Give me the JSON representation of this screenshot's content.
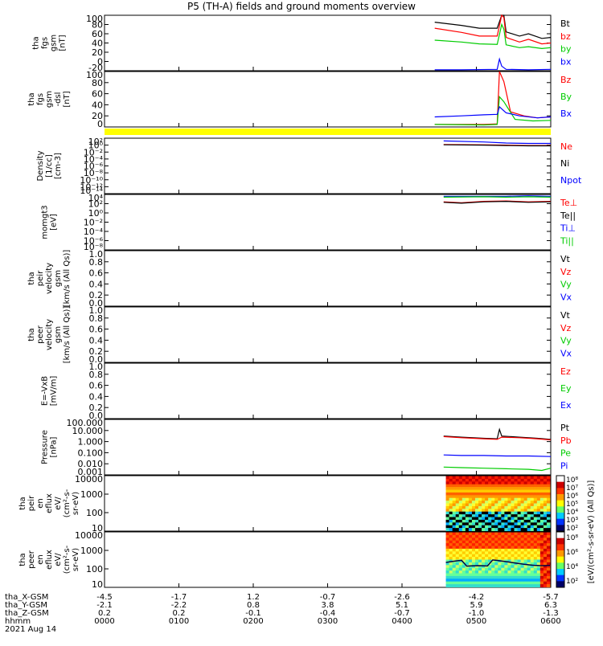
{
  "title": "P5 (TH-A) fields and ground moments overview",
  "date": "2021 Aug 14",
  "colors": {
    "black": "#000000",
    "red": "#ff0000",
    "green": "#00cc00",
    "blue": "#0000ff",
    "yellow": "#ffff00"
  },
  "chart_data": {
    "type": "line",
    "title": "P5 (TH-A) fields and ground moments overview",
    "x_time_range": [
      "0000",
      "0600"
    ],
    "panels": [
      {
        "id": "fgs_gsm",
        "ylabel": [
          "tha",
          "fgs",
          "gsm",
          "[nT]"
        ],
        "scale": "linear",
        "yticks": [
          "100",
          "80",
          "60",
          "40",
          "20",
          "0",
          "-20"
        ],
        "legend": [
          {
            "name": "Bt",
            "color": "#000000"
          },
          {
            "name": "bz",
            "color": "#ff0000"
          },
          {
            "name": "by",
            "color": "#00cc00"
          },
          {
            "name": "bx",
            "color": "#0000ff"
          }
        ],
        "series": [
          {
            "name": "Bt",
            "color": "#000000",
            "x": [
              0.74,
              0.8,
              0.84,
              0.88,
              0.89,
              0.895,
              0.9,
              0.93,
              0.95,
              0.98,
              1.0
            ],
            "y": [
              85,
              78,
              72,
              72,
              100,
              100,
              64,
              55,
              60,
              50,
              52
            ]
          },
          {
            "name": "bz",
            "color": "#ff0000",
            "x": [
              0.74,
              0.8,
              0.84,
              0.88,
              0.89,
              0.895,
              0.9,
              0.93,
              0.95,
              0.98,
              1.0
            ],
            "y": [
              72,
              63,
              55,
              55,
              100,
              95,
              52,
              42,
              48,
              38,
              40
            ]
          },
          {
            "name": "by",
            "color": "#00cc00",
            "x": [
              0.74,
              0.8,
              0.84,
              0.88,
              0.89,
              0.895,
              0.9,
              0.93,
              0.95,
              0.98,
              1.0
            ],
            "y": [
              46,
              42,
              38,
              37,
              80,
              70,
              36,
              30,
              32,
              28,
              30
            ]
          },
          {
            "name": "bx",
            "color": "#0000ff",
            "x": [
              0.74,
              0.8,
              0.88,
              0.885,
              0.89,
              0.9,
              0.95,
              1.0
            ],
            "y": [
              -18,
              -18,
              -17,
              5,
              -10,
              -17,
              -18,
              -17
            ]
          }
        ]
      },
      {
        "id": "fgs_gsm_dsl",
        "ylabel": [
          "tha",
          "fgs",
          "gsm",
          "-dsl",
          "[nT]"
        ],
        "scale": "linear",
        "yticks": [
          "100",
          "80",
          "60",
          "40",
          "20",
          "0"
        ],
        "legend": [
          {
            "name": "Bz",
            "color": "#ff0000"
          },
          {
            "name": "By",
            "color": "#00cc00"
          },
          {
            "name": "Bx",
            "color": "#0000ff"
          }
        ],
        "series": [
          {
            "name": "Bz",
            "color": "#ff0000",
            "x": [
              0.74,
              0.85,
              0.88,
              0.885,
              0.895,
              0.91,
              0.94,
              0.97,
              1.0
            ],
            "y": [
              -5,
              -5,
              -4,
              100,
              80,
              20,
              12,
              8,
              10
            ]
          },
          {
            "name": "By",
            "color": "#00cc00",
            "x": [
              0.74,
              0.85,
              0.88,
              0.885,
              0.895,
              0.92,
              0.96,
              1.0
            ],
            "y": [
              -5,
              -6,
              -5,
              50,
              40,
              5,
              2,
              3
            ]
          },
          {
            "name": "Bx",
            "color": "#0000ff",
            "x": [
              0.74,
              0.8,
              0.85,
              0.88,
              0.885,
              0.9,
              0.93,
              0.97,
              1.0
            ],
            "y": [
              10,
              12,
              14,
              15,
              30,
              18,
              12,
              8,
              10
            ]
          }
        ]
      },
      {
        "id": "density",
        "ylabel": [
          "Density",
          "[1/cc]",
          "[cm-3]"
        ],
        "scale": "log",
        "yticks": [
          "10²",
          "10⁰",
          "10⁻²",
          "10⁻⁴",
          "10⁻⁶",
          "10⁻⁸",
          "10⁻¹⁰",
          "10⁻¹²",
          "10⁻¹⁴"
        ],
        "legend": [
          {
            "name": "Ne",
            "color": "#ff0000"
          },
          {
            "name": "Ni",
            "color": "#000000"
          },
          {
            "name": "Npot",
            "color": "#0000ff"
          }
        ],
        "series": [
          {
            "name": "Npot",
            "color": "#0000ff",
            "x": [
              0.76,
              0.85,
              0.9,
              0.95,
              1.0
            ],
            "y": [
              1.2,
              0.9,
              0.6,
              0.5,
              0.5
            ]
          },
          {
            "name": "Ne",
            "color": "#ff0000",
            "x": [
              0.76,
              0.85,
              0.9,
              0.95,
              1.0
            ],
            "y": [
              0.2,
              0.1,
              0.0,
              -0.1,
              -0.1
            ]
          },
          {
            "name": "Ni",
            "color": "#000000",
            "x": [
              0.76,
              0.85,
              0.9,
              0.95,
              1.0
            ],
            "y": [
              0.1,
              0.0,
              -0.1,
              -0.2,
              -0.2
            ]
          }
        ]
      },
      {
        "id": "moms_temp",
        "ylabel": [
          "momgt3",
          "[eV]"
        ],
        "scale": "log",
        "yticks": [
          "10⁴",
          "10²",
          "10⁰",
          "10⁻²",
          "10⁻⁴",
          "10⁻⁶",
          "10⁻⁸"
        ],
        "legend": [
          {
            "name": "Te⊥",
            "color": "#ff0000"
          },
          {
            "name": "Te||",
            "color": "#000000"
          },
          {
            "name": "Ti⊥",
            "color": "#0000ff"
          },
          {
            "name": "Ti||",
            "color": "#00cc00"
          }
        ],
        "series": [
          {
            "name": "Ti⊥",
            "color": "#0000ff",
            "x": [
              0.76,
              0.85,
              0.9,
              0.95,
              1.0
            ],
            "y": [
              3.6,
              3.6,
              3.6,
              3.7,
              3.6
            ]
          },
          {
            "name": "Ti||",
            "color": "#00cc00",
            "x": [
              0.76,
              0.85,
              0.9,
              0.95,
              1.0
            ],
            "y": [
              3.4,
              3.5,
              3.4,
              3.5,
              3.4
            ]
          },
          {
            "name": "Te⊥",
            "color": "#ff0000",
            "x": [
              0.76,
              0.8,
              0.85,
              0.9,
              0.95,
              1.0
            ],
            "y": [
              2.4,
              2.2,
              2.5,
              2.6,
              2.4,
              2.5
            ]
          },
          {
            "name": "Te||",
            "color": "#000000",
            "x": [
              0.76,
              0.8,
              0.85,
              0.9,
              0.95,
              1.0
            ],
            "y": [
              2.3,
              2.1,
              2.4,
              2.5,
              2.3,
              2.4
            ]
          }
        ]
      },
      {
        "id": "peir_velocity",
        "ylabel": [
          "tha",
          "peir",
          "velocity",
          "gsm",
          "[km/s (All Qs)]"
        ],
        "scale": "linear",
        "yticks": [
          "1.0",
          "0.8",
          "0.6",
          "0.4",
          "0.2",
          "0.0"
        ],
        "legend": [
          {
            "name": "Vt",
            "color": "#000000"
          },
          {
            "name": "Vz",
            "color": "#ff0000"
          },
          {
            "name": "Vy",
            "color": "#00cc00"
          },
          {
            "name": "Vx",
            "color": "#0000ff"
          }
        ],
        "series": []
      },
      {
        "id": "peer_velocity",
        "ylabel": [
          "tha",
          "peer",
          "velocity",
          "gsm",
          "[km/s (All Qs)]"
        ],
        "scale": "linear",
        "yticks": [
          "1.0",
          "0.8",
          "0.6",
          "0.4",
          "0.2",
          "0.0"
        ],
        "legend": [
          {
            "name": "Vt",
            "color": "#000000"
          },
          {
            "name": "Vz",
            "color": "#ff0000"
          },
          {
            "name": "Vy",
            "color": "#00cc00"
          },
          {
            "name": "Vx",
            "color": "#0000ff"
          }
        ],
        "series": []
      },
      {
        "id": "efield",
        "ylabel": [
          "E=-VxB",
          "[mV/m]"
        ],
        "scale": "linear",
        "yticks": [
          "1.0",
          "0.8",
          "0.6",
          "0.4",
          "0.2",
          "0.0"
        ],
        "legend": [
          {
            "name": "Ez",
            "color": "#ff0000"
          },
          {
            "name": "Ey",
            "color": "#00cc00"
          },
          {
            "name": "Ex",
            "color": "#0000ff"
          }
        ],
        "series": []
      },
      {
        "id": "pressure",
        "ylabel": [
          "Pressure",
          "[nPa]"
        ],
        "scale": "log",
        "yticks": [
          "100.000",
          "10.000",
          "1.000",
          "0.100",
          "0.010",
          "0.001"
        ],
        "legend": [
          {
            "name": "Pt",
            "color": "#000000"
          },
          {
            "name": "Pb",
            "color": "#ff0000"
          },
          {
            "name": "Pe",
            "color": "#00cc00"
          },
          {
            "name": "Pi",
            "color": "#0000ff"
          }
        ],
        "series": [
          {
            "name": "Pt",
            "color": "#000000",
            "x": [
              0.76,
              0.8,
              0.85,
              0.88,
              0.885,
              0.89,
              0.93,
              0.97,
              1.0
            ],
            "y": [
              0.5,
              0.4,
              0.3,
              0.25,
              1.1,
              0.5,
              0.4,
              0.3,
              0.2
            ]
          },
          {
            "name": "Pb",
            "color": "#ff0000",
            "x": [
              0.76,
              0.8,
              0.85,
              0.88,
              0.89,
              0.93,
              0.97,
              1.0
            ],
            "y": [
              0.45,
              0.35,
              0.25,
              0.2,
              0.4,
              0.35,
              0.25,
              0.15
            ]
          },
          {
            "name": "Pi",
            "color": "#0000ff",
            "x": [
              0.76,
              0.8,
              0.85,
              0.9,
              0.95,
              1.0
            ],
            "y": [
              -1.2,
              -1.25,
              -1.25,
              -1.3,
              -1.3,
              -1.35
            ]
          },
          {
            "name": "Pe",
            "color": "#00cc00",
            "x": [
              0.76,
              0.8,
              0.85,
              0.9,
              0.95,
              0.98,
              1.0
            ],
            "y": [
              -2.3,
              -2.35,
              -2.4,
              -2.45,
              -2.5,
              -2.6,
              -2.4
            ]
          }
        ]
      },
      {
        "id": "peir_eflux",
        "ylabel": [
          "tha",
          "peir",
          "en",
          "eflux",
          "eV/",
          "(cm²-s-",
          "sr-eV)"
        ],
        "scale": "log",
        "yticks": [
          "10000",
          "1000",
          "100",
          "10"
        ],
        "type": "spectrogram"
      },
      {
        "id": "peer_eflux",
        "ylabel": [
          "tha",
          "peer",
          "en",
          "eflux",
          "eV/",
          "(cm²-s-",
          "sr-eV)"
        ],
        "scale": "log",
        "yticks": [
          "10000",
          "1000",
          "100",
          "10"
        ],
        "type": "spectrogram"
      }
    ],
    "colorbar": {
      "label": "[eV/(cm²-s-sr-eV) (All Qs)]",
      "ticks_top": [
        "10⁸",
        "10⁷",
        "10⁶",
        "10⁵",
        "10⁴",
        "10³",
        "10²"
      ],
      "ticks_bottom": [
        "10⁸",
        "10⁶",
        "10⁴",
        "10²"
      ]
    },
    "x_axis": {
      "row_labels": [
        "tha_X-GSM",
        "tha_Y-GSM",
        "tha_Z-GSM",
        "hhmm"
      ],
      "columns": [
        {
          "x": [
            "-4.5",
            "-2.1",
            "0.2",
            "0000"
          ]
        },
        {
          "x": [
            "-1.7",
            "-2.2",
            "0.2",
            "0100"
          ]
        },
        {
          "x": [
            "1.2",
            "0.8",
            "-0.1",
            "0200"
          ]
        },
        {
          "x": [
            "-0.7",
            "3.8",
            "-0.4",
            "0300"
          ]
        },
        {
          "x": [
            "-2.6",
            "5.1",
            "-0.7",
            "0400"
          ]
        },
        {
          "x": [
            "-4.2",
            "5.9",
            "-1.0",
            "0500"
          ]
        },
        {
          "x": [
            "-5.7",
            "6.3",
            "-1.3",
            "0600"
          ]
        }
      ]
    }
  }
}
